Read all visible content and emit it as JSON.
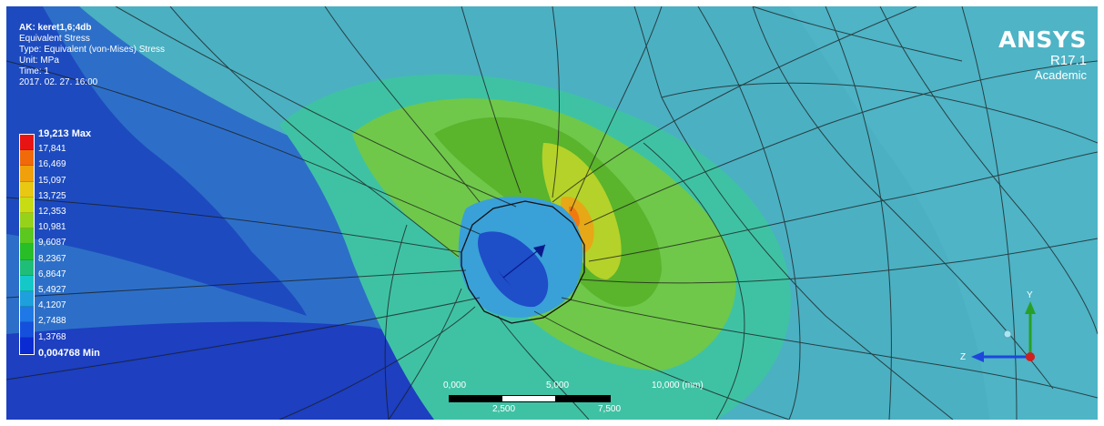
{
  "result_info": {
    "title": "AK: keret1,6;4db",
    "result_type": "Equivalent Stress",
    "type_line": "Type: Equivalent (von-Mises) Stress",
    "unit_line": "Unit: MPa",
    "time_line": "Time: 1",
    "timestamp": "2017. 02. 27. 16:00"
  },
  "legend": {
    "max_label": "19,213 Max",
    "min_label": "0,004768 Min",
    "levels": [
      "17,841",
      "16,469",
      "15,097",
      "13,725",
      "12,353",
      "10,981",
      "9,6087",
      "8,2367",
      "6,8647",
      "5,4927",
      "4,1207",
      "2,7488",
      "1,3768"
    ],
    "colors": [
      "#e81414",
      "#f06a0a",
      "#f0a00a",
      "#e8c812",
      "#c8dc14",
      "#96d21a",
      "#5ac81e",
      "#28be28",
      "#1ebe78",
      "#14c8c8",
      "#1ea0dc",
      "#1e78e6",
      "#1450dc",
      "#0a2ad2"
    ]
  },
  "logo": {
    "name": "ANSYS",
    "version": "R17.1",
    "edition": "Academic"
  },
  "scale_bar": {
    "top_labels": [
      "0,000",
      "5,000",
      "10,000 (mm)"
    ],
    "bottom_labels": [
      "2,500",
      "7,500"
    ]
  },
  "triad": {
    "y_axis": "Y",
    "z_axis": "Z",
    "colors": {
      "x": "#d21e1e",
      "y": "#28a028",
      "z": "#1e46dc"
    }
  }
}
